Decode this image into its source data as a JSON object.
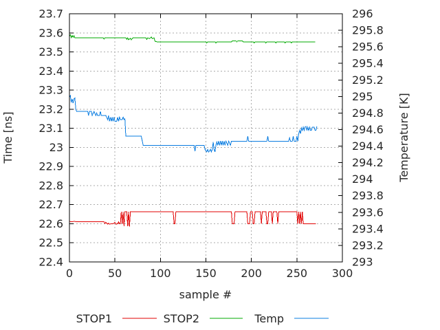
{
  "chart_data": {
    "type": "line",
    "title": "",
    "xlabel": "sample #",
    "ylabel": "Time [ns]",
    "y2label": "Temperature [K]",
    "x_range": [
      0,
      300
    ],
    "y_range": [
      22.4,
      23.7
    ],
    "y2_range": [
      293,
      296
    ],
    "grid": true,
    "legend_position": "below-plot",
    "x_ticks": {
      "values": [
        0,
        50,
        100,
        150,
        200,
        250,
        300
      ],
      "labels": [
        "0",
        "50",
        "100",
        "150",
        "200",
        "250",
        "300"
      ]
    },
    "y_ticks": {
      "values": [
        22.4,
        22.5,
        22.6,
        22.7,
        22.8,
        22.9,
        23,
        23.1,
        23.2,
        23.3,
        23.4,
        23.5,
        23.6,
        23.7
      ],
      "labels": [
        "22.4",
        "22.5",
        "22.6",
        "22.7",
        "22.8",
        "22.9",
        "23",
        "23.1",
        "23.2",
        "23.3",
        "23.4",
        "23.5",
        "23.6",
        "23.7"
      ]
    },
    "y2_ticks": {
      "values": [
        293,
        293.2,
        293.4,
        293.6,
        293.8,
        294,
        294.2,
        294.4,
        294.6,
        294.8,
        295,
        295.2,
        295.4,
        295.6,
        295.8,
        296
      ],
      "labels": [
        "293",
        "293.2",
        "293.4",
        "293.6",
        "293.8",
        "294",
        "294.2",
        "294.4",
        "294.6",
        "294.8",
        "295",
        "295.2",
        "295.4",
        "295.6",
        "295.8",
        "296"
      ]
    },
    "series": [
      {
        "name": "STOP1",
        "color": "#e00000",
        "axis": "y1",
        "points": [
          [
            0,
            22.612
          ],
          [
            3,
            22.61
          ],
          [
            5,
            22.613
          ],
          [
            8,
            22.61
          ],
          [
            20,
            22.61
          ],
          [
            38,
            22.61
          ],
          [
            39,
            22.601
          ],
          [
            40,
            22.608
          ],
          [
            42,
            22.598
          ],
          [
            43,
            22.603
          ],
          [
            44,
            22.598
          ],
          [
            46,
            22.6
          ],
          [
            48,
            22.6
          ],
          [
            50,
            22.607
          ],
          [
            51,
            22.598
          ],
          [
            53,
            22.6
          ],
          [
            54,
            22.61
          ],
          [
            55,
            22.6
          ],
          [
            56,
            22.6
          ],
          [
            57,
            22.662
          ],
          [
            58,
            22.6
          ],
          [
            59,
            22.662
          ],
          [
            60,
            22.588
          ],
          [
            61,
            22.662
          ],
          [
            63,
            22.662
          ],
          [
            64,
            22.588
          ],
          [
            65,
            22.662
          ],
          [
            66,
            22.585
          ],
          [
            67,
            22.662
          ],
          [
            114,
            22.662
          ],
          [
            115,
            22.6
          ],
          [
            116,
            22.6
          ],
          [
            117,
            22.662
          ],
          [
            178,
            22.662
          ],
          [
            179,
            22.6
          ],
          [
            181,
            22.6
          ],
          [
            182,
            22.662
          ],
          [
            195,
            22.662
          ],
          [
            196,
            22.6
          ],
          [
            198,
            22.6
          ],
          [
            199,
            22.662
          ],
          [
            201,
            22.662
          ],
          [
            202,
            22.6
          ],
          [
            203,
            22.6
          ],
          [
            204,
            22.662
          ],
          [
            210,
            22.662
          ],
          [
            211,
            22.6
          ],
          [
            212,
            22.662
          ],
          [
            216,
            22.662
          ],
          [
            217,
            22.6
          ],
          [
            218,
            22.6
          ],
          [
            219,
            22.662
          ],
          [
            222,
            22.662
          ],
          [
            223,
            22.6
          ],
          [
            224,
            22.662
          ],
          [
            228,
            22.662
          ],
          [
            229,
            22.6
          ],
          [
            230,
            22.662
          ],
          [
            250,
            22.662
          ],
          [
            251,
            22.6
          ],
          [
            252,
            22.662
          ],
          [
            253,
            22.6
          ],
          [
            254,
            22.662
          ],
          [
            255,
            22.6
          ],
          [
            256,
            22.662
          ],
          [
            257,
            22.6
          ],
          [
            258,
            22.6
          ],
          [
            271,
            22.6
          ]
        ]
      },
      {
        "name": "STOP2",
        "color": "#00a800",
        "axis": "y1",
        "points": [
          [
            0,
            23.582
          ],
          [
            1,
            23.59
          ],
          [
            2,
            23.575
          ],
          [
            3,
            23.586
          ],
          [
            4,
            23.577
          ],
          [
            5,
            23.585
          ],
          [
            6,
            23.574
          ],
          [
            8,
            23.574
          ],
          [
            37,
            23.574
          ],
          [
            38,
            23.568
          ],
          [
            39,
            23.574
          ],
          [
            62,
            23.574
          ],
          [
            63,
            23.566
          ],
          [
            64,
            23.574
          ],
          [
            65,
            23.564
          ],
          [
            67,
            23.571
          ],
          [
            68,
            23.564
          ],
          [
            70,
            23.574
          ],
          [
            84,
            23.574
          ],
          [
            85,
            23.566
          ],
          [
            86,
            23.574
          ],
          [
            88,
            23.57
          ],
          [
            90,
            23.578
          ],
          [
            91,
            23.57
          ],
          [
            93,
            23.574
          ],
          [
            94,
            23.556
          ],
          [
            96,
            23.553
          ],
          [
            150,
            23.553
          ],
          [
            151,
            23.547
          ],
          [
            152,
            23.553
          ],
          [
            160,
            23.553
          ],
          [
            161,
            23.547
          ],
          [
            162,
            23.553
          ],
          [
            178,
            23.553
          ],
          [
            179,
            23.558
          ],
          [
            183,
            23.558
          ],
          [
            184,
            23.553
          ],
          [
            185,
            23.558
          ],
          [
            190,
            23.558
          ],
          [
            191,
            23.553
          ],
          [
            202,
            23.553
          ],
          [
            203,
            23.547
          ],
          [
            204,
            23.553
          ],
          [
            215,
            23.553
          ],
          [
            216,
            23.547
          ],
          [
            217,
            23.553
          ],
          [
            226,
            23.553
          ],
          [
            227,
            23.547
          ],
          [
            228,
            23.553
          ],
          [
            236,
            23.553
          ],
          [
            237,
            23.547
          ],
          [
            238,
            23.553
          ],
          [
            243,
            23.553
          ],
          [
            244,
            23.547
          ],
          [
            245,
            23.553
          ],
          [
            270,
            23.553
          ]
        ]
      },
      {
        "name": "Temp",
        "color": "#0a7ce0",
        "axis": "y2",
        "points": [
          [
            0,
            294.99
          ],
          [
            1,
            295.01
          ],
          [
            2,
            294.93
          ],
          [
            3,
            294.97
          ],
          [
            4,
            294.92
          ],
          [
            5,
            294.97
          ],
          [
            6,
            294.98
          ],
          [
            7,
            294.84
          ],
          [
            8,
            294.82
          ],
          [
            20,
            294.82
          ],
          [
            21,
            294.77
          ],
          [
            22,
            294.82
          ],
          [
            24,
            294.82
          ],
          [
            25,
            294.77
          ],
          [
            27,
            294.82
          ],
          [
            29,
            294.77
          ],
          [
            30,
            294.8
          ],
          [
            31,
            294.77
          ],
          [
            33,
            294.77
          ],
          [
            34,
            294.82
          ],
          [
            35,
            294.77
          ],
          [
            38,
            294.77
          ],
          [
            40,
            294.77
          ],
          [
            42,
            294.72
          ],
          [
            43,
            294.77
          ],
          [
            44,
            294.7
          ],
          [
            45,
            294.75
          ],
          [
            46,
            294.7
          ],
          [
            47,
            294.75
          ],
          [
            48,
            294.7
          ],
          [
            49,
            294.75
          ],
          [
            50,
            294.7
          ],
          [
            52,
            294.7
          ],
          [
            53,
            294.75
          ],
          [
            54,
            294.7
          ],
          [
            55,
            294.75
          ],
          [
            56,
            294.72
          ],
          [
            58,
            294.72
          ],
          [
            59,
            294.75
          ],
          [
            60,
            294.72
          ],
          [
            61,
            294.73
          ],
          [
            62,
            294.52
          ],
          [
            79,
            294.52
          ],
          [
            81,
            294.41
          ],
          [
            137,
            294.41
          ],
          [
            138,
            294.34
          ],
          [
            139,
            294.41
          ],
          [
            148,
            294.41
          ],
          [
            149,
            294.36
          ],
          [
            151,
            294.33
          ],
          [
            152,
            294.36
          ],
          [
            153,
            294.33
          ],
          [
            155,
            294.36
          ],
          [
            156,
            294.33
          ],
          [
            157,
            294.36
          ],
          [
            158,
            294.45
          ],
          [
            159,
            294.36
          ],
          [
            160,
            294.33
          ],
          [
            161,
            294.41
          ],
          [
            162,
            294.45
          ],
          [
            163,
            294.41
          ],
          [
            164,
            294.46
          ],
          [
            165,
            294.41
          ],
          [
            166,
            294.46
          ],
          [
            167,
            294.41
          ],
          [
            168,
            294.46
          ],
          [
            169,
            294.41
          ],
          [
            170,
            294.46
          ],
          [
            171,
            294.41
          ],
          [
            172,
            294.46
          ],
          [
            174,
            294.41
          ],
          [
            175,
            294.46
          ],
          [
            177,
            294.41
          ],
          [
            178,
            294.46
          ],
          [
            180,
            294.46
          ],
          [
            195,
            294.46
          ],
          [
            196,
            294.52
          ],
          [
            197,
            294.46
          ],
          [
            217,
            294.46
          ],
          [
            218,
            294.52
          ],
          [
            219,
            294.46
          ],
          [
            241,
            294.46
          ],
          [
            242,
            294.5
          ],
          [
            243,
            294.46
          ],
          [
            245,
            294.46
          ],
          [
            246,
            294.52
          ],
          [
            247,
            294.46
          ],
          [
            249,
            294.46
          ],
          [
            250,
            294.52
          ],
          [
            251,
            294.46
          ],
          [
            252,
            294.55
          ],
          [
            253,
            294.59
          ],
          [
            254,
            294.55
          ],
          [
            255,
            294.62
          ],
          [
            256,
            294.59
          ],
          [
            257,
            294.63
          ],
          [
            258,
            294.59
          ],
          [
            259,
            294.63
          ],
          [
            260,
            294.64
          ],
          [
            261,
            294.59
          ],
          [
            262,
            294.63
          ],
          [
            263,
            294.59
          ],
          [
            264,
            294.63
          ],
          [
            265,
            294.59
          ],
          [
            266,
            294.59
          ],
          [
            267,
            294.63
          ],
          [
            269,
            294.63
          ],
          [
            270,
            294.59
          ],
          [
            271,
            294.59
          ],
          [
            272,
            294.64
          ]
        ]
      }
    ]
  }
}
